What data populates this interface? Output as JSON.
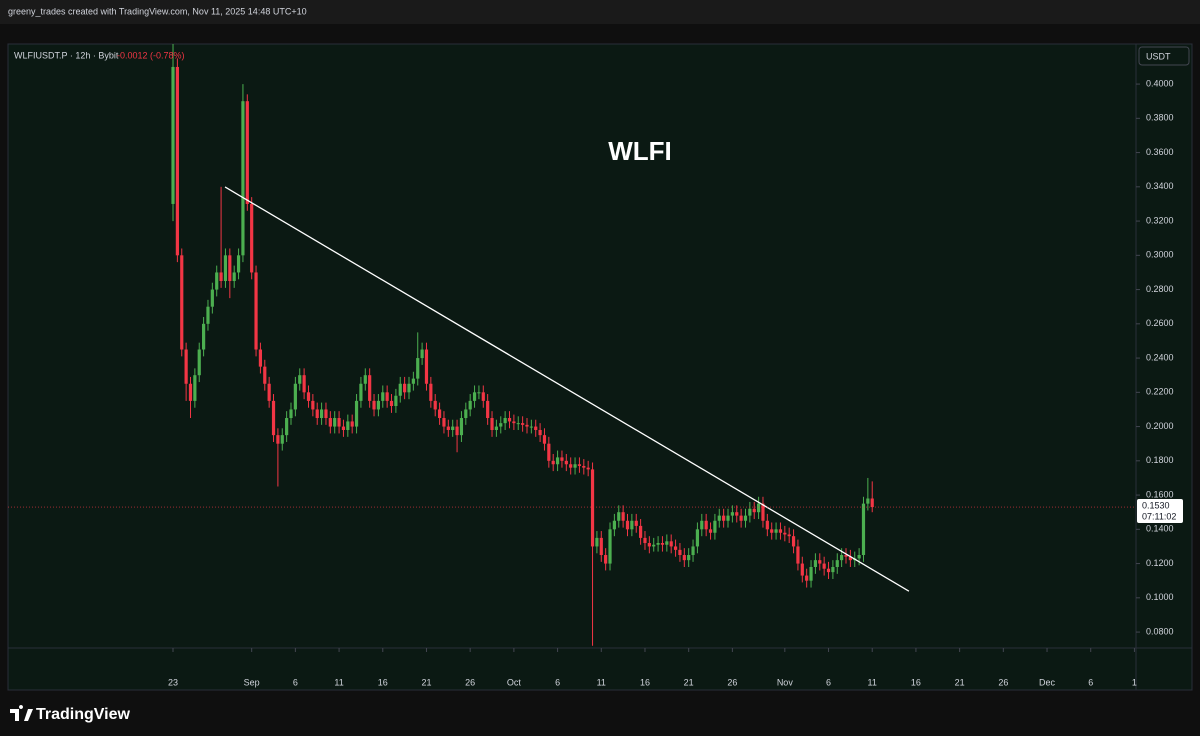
{
  "header": "greeny_trades created with TradingView.com, Nov 11, 2025 14:48 UTC+10",
  "footer": "TradingView",
  "chart_data": {
    "type": "candlestick",
    "symbol": "WLFIUSDT.P · 12h · Bybit",
    "change": "-0.0012 (-0.78%)",
    "annotation": "WLFI",
    "currency": "USDT",
    "last_price": {
      "value": 0.153,
      "label": "0.1530"
    },
    "countdown": "07:11:02",
    "colors": {
      "up": "#4caf50",
      "down": "#f23645",
      "trendline": "#ffffff"
    },
    "grid": false,
    "xlim": [
      -18.88,
      110.18
    ],
    "ylim": [
      0.0707,
      0.4234
    ],
    "yticks": [
      {
        "value": 0.08,
        "label": "0.0800"
      },
      {
        "value": 0.1,
        "label": "0.1000"
      },
      {
        "value": 0.12,
        "label": "0.1200"
      },
      {
        "value": 0.14,
        "label": "0.1400"
      },
      {
        "value": 0.16,
        "label": "0.1600"
      },
      {
        "value": 0.18,
        "label": "0.1800"
      },
      {
        "value": 0.2,
        "label": "0.2000"
      },
      {
        "value": 0.22,
        "label": "0.2200"
      },
      {
        "value": 0.24,
        "label": "0.2400"
      },
      {
        "value": 0.26,
        "label": "0.2600"
      },
      {
        "value": 0.28,
        "label": "0.2800"
      },
      {
        "value": 0.3,
        "label": "0.3000"
      },
      {
        "value": 0.32,
        "label": "0.3200"
      },
      {
        "value": 0.34,
        "label": "0.3400"
      },
      {
        "value": 0.36,
        "label": "0.3600"
      },
      {
        "value": 0.38,
        "label": "0.3800"
      },
      {
        "value": 0.4,
        "label": "0.4000"
      }
    ],
    "xticks": [
      {
        "value": 0,
        "label": "23"
      },
      {
        "value": 9,
        "label": "Sep"
      },
      {
        "value": 14,
        "label": "6"
      },
      {
        "value": 19,
        "label": "11"
      },
      {
        "value": 24,
        "label": "16"
      },
      {
        "value": 29,
        "label": "21"
      },
      {
        "value": 34,
        "label": "26"
      },
      {
        "value": 39,
        "label": "Oct"
      },
      {
        "value": 44,
        "label": "6"
      },
      {
        "value": 49,
        "label": "11"
      },
      {
        "value": 54,
        "label": "16"
      },
      {
        "value": 59,
        "label": "21"
      },
      {
        "value": 64,
        "label": "26"
      },
      {
        "value": 70,
        "label": "Nov"
      },
      {
        "value": 75,
        "label": "6"
      },
      {
        "value": 80,
        "label": "11"
      },
      {
        "value": 85,
        "label": "16"
      },
      {
        "value": 90,
        "label": "21"
      },
      {
        "value": 95,
        "label": "26"
      },
      {
        "value": 100,
        "label": "Dec"
      },
      {
        "value": 105,
        "label": "6"
      },
      {
        "value": 110,
        "label": "1"
      }
    ],
    "trendline": {
      "x": [
        5.95,
        84.2
      ],
      "y": [
        0.3399,
        0.1039
      ]
    },
    "x": [
      0,
      0.5,
      1,
      1.5,
      2,
      2.5,
      3,
      3.5,
      4,
      4.5,
      5,
      5.5,
      6,
      6.5,
      7,
      7.5,
      8,
      8.5,
      9,
      9.5,
      10,
      10.5,
      11,
      11.5,
      12,
      12.5,
      13,
      13.5,
      14,
      14.5,
      15,
      15.5,
      16,
      16.5,
      17,
      17.5,
      18,
      18.5,
      19,
      19.5,
      20,
      20.5,
      21,
      21.5,
      22,
      22.5,
      23,
      23.5,
      24,
      24.5,
      25,
      25.5,
      26,
      26.5,
      27,
      27.5,
      28,
      28.5,
      29,
      29.5,
      30,
      30.5,
      31,
      31.5,
      32,
      32.5,
      33,
      33.5,
      34,
      34.5,
      35,
      35.5,
      36,
      36.5,
      37,
      37.5,
      38,
      38.5,
      39,
      39.5,
      40,
      40.5,
      41,
      41.5,
      42,
      42.5,
      43,
      43.5,
      44,
      44.5,
      45,
      45.5,
      46,
      46.5,
      47,
      47.5,
      48,
      48.5,
      49,
      49.5,
      50,
      50.5,
      51,
      51.5,
      52,
      52.5,
      53,
      53.5,
      54,
      54.5,
      55,
      55.5,
      56,
      56.5,
      57,
      57.5,
      58,
      58.5,
      59,
      59.5,
      60,
      60.5,
      61,
      61.5,
      62,
      62.5,
      63,
      63.5,
      64,
      64.5,
      65,
      65.5,
      66,
      66.5,
      67,
      67.5,
      68,
      68.5,
      69,
      69.5,
      70,
      70.5,
      71,
      71.5,
      72,
      72.5,
      73,
      73.5,
      74,
      74.5,
      75,
      75.5,
      76,
      76.5,
      77,
      77.5,
      78,
      78.5,
      79,
      79.5,
      80
    ],
    "ohlc": [
      [
        0.33,
        0.43,
        0.32,
        0.41
      ],
      [
        0.41,
        0.415,
        0.296,
        0.3
      ],
      [
        0.3,
        0.304,
        0.241,
        0.245
      ],
      [
        0.245,
        0.249,
        0.215,
        0.225
      ],
      [
        0.225,
        0.229,
        0.205,
        0.215
      ],
      [
        0.215,
        0.234,
        0.211,
        0.23
      ],
      [
        0.23,
        0.249,
        0.226,
        0.245
      ],
      [
        0.245,
        0.264,
        0.241,
        0.26
      ],
      [
        0.26,
        0.274,
        0.256,
        0.27
      ],
      [
        0.27,
        0.284,
        0.266,
        0.28
      ],
      [
        0.28,
        0.294,
        0.276,
        0.29
      ],
      [
        0.29,
        0.34,
        0.281,
        0.285
      ],
      [
        0.285,
        0.304,
        0.281,
        0.3
      ],
      [
        0.3,
        0.304,
        0.275,
        0.285
      ],
      [
        0.285,
        0.294,
        0.281,
        0.29
      ],
      [
        0.29,
        0.304,
        0.286,
        0.3
      ],
      [
        0.3,
        0.4,
        0.296,
        0.39
      ],
      [
        0.39,
        0.394,
        0.326,
        0.33
      ],
      [
        0.33,
        0.334,
        0.286,
        0.29
      ],
      [
        0.29,
        0.294,
        0.241,
        0.245
      ],
      [
        0.245,
        0.249,
        0.231,
        0.235
      ],
      [
        0.235,
        0.239,
        0.221,
        0.225
      ],
      [
        0.225,
        0.229,
        0.211,
        0.215
      ],
      [
        0.215,
        0.219,
        0.191,
        0.195
      ],
      [
        0.195,
        0.199,
        0.165,
        0.19
      ],
      [
        0.19,
        0.199,
        0.186,
        0.195
      ],
      [
        0.195,
        0.209,
        0.191,
        0.205
      ],
      [
        0.205,
        0.214,
        0.201,
        0.21
      ],
      [
        0.21,
        0.229,
        0.206,
        0.225
      ],
      [
        0.225,
        0.234,
        0.221,
        0.23
      ],
      [
        0.23,
        0.234,
        0.216,
        0.22
      ],
      [
        0.22,
        0.224,
        0.211,
        0.215
      ],
      [
        0.215,
        0.219,
        0.206,
        0.21
      ],
      [
        0.21,
        0.214,
        0.201,
        0.205
      ],
      [
        0.205,
        0.214,
        0.201,
        0.21
      ],
      [
        0.21,
        0.214,
        0.201,
        0.205
      ],
      [
        0.205,
        0.209,
        0.196,
        0.2
      ],
      [
        0.2,
        0.209,
        0.196,
        0.205
      ],
      [
        0.205,
        0.209,
        0.196,
        0.2
      ],
      [
        0.2,
        0.204,
        0.194,
        0.198
      ],
      [
        0.198,
        0.207,
        0.194,
        0.203
      ],
      [
        0.203,
        0.207,
        0.196,
        0.2
      ],
      [
        0.2,
        0.219,
        0.196,
        0.215
      ],
      [
        0.215,
        0.229,
        0.211,
        0.225
      ],
      [
        0.225,
        0.234,
        0.221,
        0.23
      ],
      [
        0.23,
        0.234,
        0.211,
        0.215
      ],
      [
        0.215,
        0.219,
        0.206,
        0.21
      ],
      [
        0.21,
        0.219,
        0.206,
        0.215
      ],
      [
        0.215,
        0.224,
        0.211,
        0.22
      ],
      [
        0.22,
        0.224,
        0.211,
        0.215
      ],
      [
        0.215,
        0.219,
        0.208,
        0.212
      ],
      [
        0.212,
        0.222,
        0.208,
        0.218
      ],
      [
        0.218,
        0.229,
        0.214,
        0.225
      ],
      [
        0.225,
        0.229,
        0.216,
        0.22
      ],
      [
        0.22,
        0.229,
        0.216,
        0.225
      ],
      [
        0.225,
        0.232,
        0.221,
        0.228
      ],
      [
        0.228,
        0.255,
        0.224,
        0.24
      ],
      [
        0.24,
        0.249,
        0.236,
        0.245
      ],
      [
        0.245,
        0.249,
        0.221,
        0.225
      ],
      [
        0.225,
        0.229,
        0.211,
        0.215
      ],
      [
        0.215,
        0.219,
        0.206,
        0.21
      ],
      [
        0.21,
        0.214,
        0.201,
        0.205
      ],
      [
        0.205,
        0.209,
        0.196,
        0.2
      ],
      [
        0.2,
        0.204,
        0.194,
        0.198
      ],
      [
        0.198,
        0.204,
        0.194,
        0.2
      ],
      [
        0.2,
        0.204,
        0.185,
        0.195
      ],
      [
        0.195,
        0.209,
        0.191,
        0.205
      ],
      [
        0.205,
        0.214,
        0.201,
        0.21
      ],
      [
        0.21,
        0.219,
        0.206,
        0.215
      ],
      [
        0.215,
        0.224,
        0.211,
        0.22
      ],
      [
        0.22,
        0.224,
        0.216,
        0.22
      ],
      [
        0.22,
        0.224,
        0.211,
        0.215
      ],
      [
        0.215,
        0.219,
        0.201,
        0.205
      ],
      [
        0.205,
        0.209,
        0.194,
        0.198
      ],
      [
        0.198,
        0.204,
        0.194,
        0.2
      ],
      [
        0.2,
        0.206,
        0.196,
        0.202
      ],
      [
        0.202,
        0.209,
        0.198,
        0.205
      ],
      [
        0.205,
        0.209,
        0.199,
        0.203
      ],
      [
        0.203,
        0.207,
        0.198,
        0.202
      ],
      [
        0.202,
        0.206,
        0.198,
        0.202
      ],
      [
        0.202,
        0.206,
        0.197,
        0.201
      ],
      [
        0.201,
        0.205,
        0.196,
        0.2
      ],
      [
        0.2,
        0.204,
        0.196,
        0.2
      ],
      [
        0.2,
        0.204,
        0.194,
        0.198
      ],
      [
        0.198,
        0.202,
        0.191,
        0.195
      ],
      [
        0.195,
        0.199,
        0.186,
        0.19
      ],
      [
        0.19,
        0.194,
        0.176,
        0.18
      ],
      [
        0.18,
        0.184,
        0.174,
        0.178
      ],
      [
        0.178,
        0.186,
        0.174,
        0.182
      ],
      [
        0.182,
        0.186,
        0.176,
        0.18
      ],
      [
        0.18,
        0.184,
        0.174,
        0.178
      ],
      [
        0.178,
        0.182,
        0.172,
        0.176
      ],
      [
        0.176,
        0.182,
        0.172,
        0.178
      ],
      [
        0.178,
        0.182,
        0.173,
        0.177
      ],
      [
        0.177,
        0.181,
        0.172,
        0.176
      ],
      [
        0.176,
        0.18,
        0.171,
        0.175
      ],
      [
        0.175,
        0.179,
        0.072,
        0.13
      ],
      [
        0.13,
        0.139,
        0.126,
        0.135
      ],
      [
        0.135,
        0.139,
        0.121,
        0.125
      ],
      [
        0.125,
        0.129,
        0.116,
        0.12
      ],
      [
        0.12,
        0.144,
        0.116,
        0.14
      ],
      [
        0.14,
        0.149,
        0.136,
        0.145
      ],
      [
        0.145,
        0.154,
        0.141,
        0.15
      ],
      [
        0.15,
        0.154,
        0.141,
        0.145
      ],
      [
        0.145,
        0.149,
        0.136,
        0.14
      ],
      [
        0.14,
        0.149,
        0.136,
        0.145
      ],
      [
        0.145,
        0.149,
        0.138,
        0.142
      ],
      [
        0.142,
        0.146,
        0.131,
        0.135
      ],
      [
        0.135,
        0.139,
        0.128,
        0.132
      ],
      [
        0.132,
        0.136,
        0.126,
        0.13
      ],
      [
        0.13,
        0.135,
        0.127,
        0.131
      ],
      [
        0.131,
        0.136,
        0.127,
        0.132
      ],
      [
        0.132,
        0.136,
        0.127,
        0.131
      ],
      [
        0.131,
        0.137,
        0.127,
        0.133
      ],
      [
        0.133,
        0.137,
        0.126,
        0.13
      ],
      [
        0.13,
        0.134,
        0.124,
        0.128
      ],
      [
        0.128,
        0.132,
        0.121,
        0.125
      ],
      [
        0.125,
        0.129,
        0.118,
        0.122
      ],
      [
        0.122,
        0.129,
        0.118,
        0.125
      ],
      [
        0.125,
        0.134,
        0.121,
        0.13
      ],
      [
        0.13,
        0.144,
        0.126,
        0.14
      ],
      [
        0.14,
        0.149,
        0.136,
        0.145
      ],
      [
        0.145,
        0.149,
        0.136,
        0.14
      ],
      [
        0.14,
        0.144,
        0.134,
        0.138
      ],
      [
        0.138,
        0.149,
        0.134,
        0.145
      ],
      [
        0.145,
        0.152,
        0.141,
        0.148
      ],
      [
        0.148,
        0.152,
        0.141,
        0.145
      ],
      [
        0.145,
        0.152,
        0.141,
        0.148
      ],
      [
        0.148,
        0.154,
        0.144,
        0.15
      ],
      [
        0.15,
        0.154,
        0.144,
        0.148
      ],
      [
        0.148,
        0.152,
        0.141,
        0.145
      ],
      [
        0.145,
        0.152,
        0.141,
        0.148
      ],
      [
        0.148,
        0.156,
        0.144,
        0.152
      ],
      [
        0.152,
        0.156,
        0.146,
        0.15
      ],
      [
        0.15,
        0.159,
        0.146,
        0.155
      ],
      [
        0.155,
        0.159,
        0.141,
        0.145
      ],
      [
        0.145,
        0.149,
        0.136,
        0.14
      ],
      [
        0.14,
        0.144,
        0.134,
        0.138
      ],
      [
        0.138,
        0.144,
        0.134,
        0.14
      ],
      [
        0.14,
        0.144,
        0.134,
        0.138
      ],
      [
        0.138,
        0.142,
        0.133,
        0.137
      ],
      [
        0.137,
        0.141,
        0.132,
        0.136
      ],
      [
        0.136,
        0.14,
        0.126,
        0.13
      ],
      [
        0.13,
        0.134,
        0.116,
        0.12
      ],
      [
        0.12,
        0.124,
        0.109,
        0.113
      ],
      [
        0.113,
        0.117,
        0.106,
        0.11
      ],
      [
        0.11,
        0.122,
        0.106,
        0.118
      ],
      [
        0.118,
        0.126,
        0.114,
        0.122
      ],
      [
        0.122,
        0.126,
        0.116,
        0.12
      ],
      [
        0.12,
        0.124,
        0.113,
        0.117
      ],
      [
        0.117,
        0.121,
        0.111,
        0.115
      ],
      [
        0.115,
        0.122,
        0.111,
        0.118
      ],
      [
        0.118,
        0.126,
        0.114,
        0.122
      ],
      [
        0.122,
        0.129,
        0.118,
        0.125
      ],
      [
        0.125,
        0.129,
        0.12,
        0.124
      ],
      [
        0.124,
        0.128,
        0.118,
        0.122
      ],
      [
        0.122,
        0.127,
        0.118,
        0.123
      ],
      [
        0.123,
        0.129,
        0.119,
        0.125
      ],
      [
        0.125,
        0.159,
        0.121,
        0.155
      ],
      [
        0.155,
        0.17,
        0.151,
        0.158
      ],
      [
        0.158,
        0.168,
        0.15,
        0.153
      ]
    ]
  }
}
